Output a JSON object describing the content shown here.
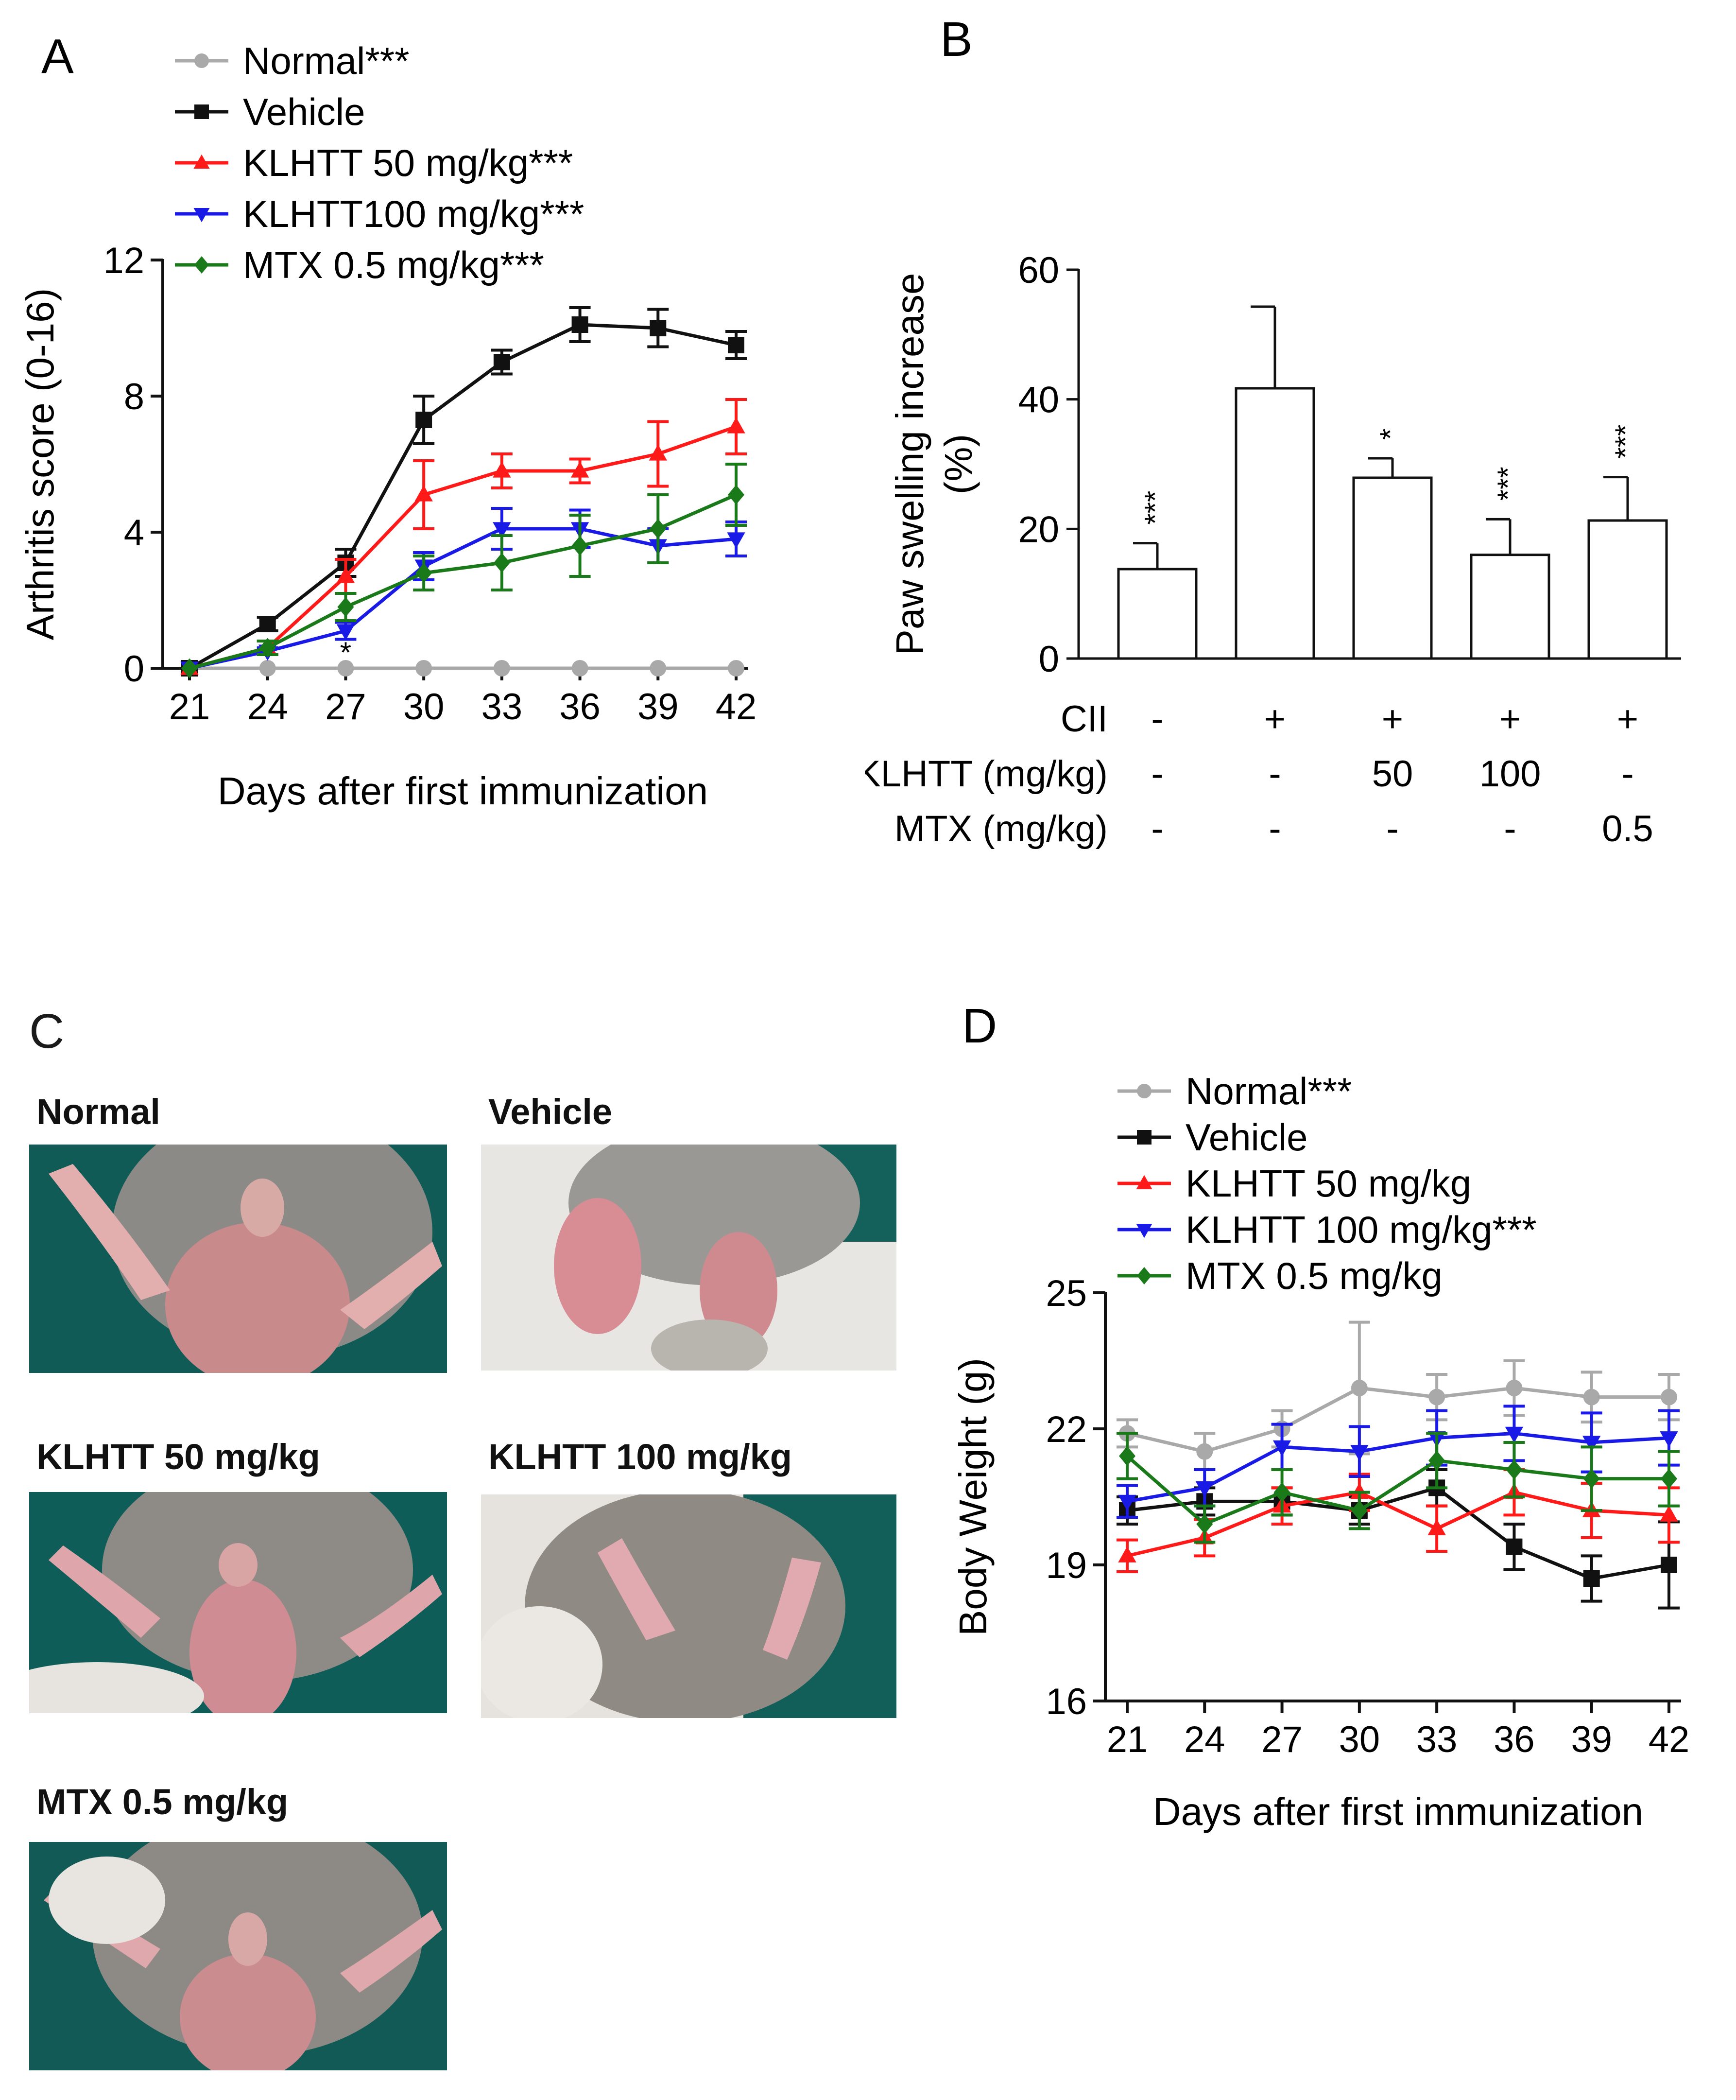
{
  "panel_letters": {
    "a": "A",
    "b": "B",
    "c": "C",
    "d": "D"
  },
  "chart_data": [
    {
      "id": "A",
      "type": "line",
      "ylabel": "Arthritis score (0-16)",
      "xlabel": "Days after first immunization",
      "x": [
        21,
        24,
        27,
        30,
        33,
        36,
        39,
        42
      ],
      "x_ticks": [
        "21",
        "24",
        "27",
        "30",
        "33",
        "36",
        "39",
        "42"
      ],
      "ylim": [
        0,
        12
      ],
      "y_ticks": [
        0,
        4,
        8,
        12
      ],
      "legend": [
        {
          "label": "Normal***",
          "color": "#a9a9a9",
          "marker": "circle"
        },
        {
          "label": "Vehicle",
          "color": "#111111",
          "marker": "square"
        },
        {
          "label": "KLHTT 50 mg/kg***",
          "color": "#ff1a1a",
          "marker": "triangle-up"
        },
        {
          "label": "KLHTT100 mg/kg***",
          "color": "#1a1ae6",
          "marker": "triangle-down"
        },
        {
          "label": "MTX 0.5 mg/kg***",
          "color": "#1a7a1a",
          "marker": "diamond"
        }
      ],
      "series": [
        {
          "name": "Normal",
          "values": [
            0,
            0,
            0,
            0,
            0,
            0,
            0,
            0
          ],
          "errors": [
            0,
            0,
            0,
            0,
            0,
            0,
            0,
            0
          ]
        },
        {
          "name": "Vehicle",
          "values": [
            0,
            1.3,
            3.1,
            7.3,
            9.0,
            10.1,
            10.0,
            9.5
          ],
          "errors": [
            0,
            0.2,
            0.4,
            0.7,
            0.35,
            0.5,
            0.55,
            0.4
          ]
        },
        {
          "name": "KLHTT 50 mg/kg",
          "values": [
            0,
            0.6,
            2.7,
            5.1,
            5.8,
            5.8,
            6.3,
            7.1
          ],
          "errors": [
            0,
            0.2,
            0.5,
            1.0,
            0.5,
            0.35,
            0.95,
            0.8
          ]
        },
        {
          "name": "KLHTT100 mg/kg",
          "values": [
            0,
            0.5,
            1.1,
            3.0,
            4.1,
            4.1,
            3.6,
            3.8
          ],
          "errors": [
            0,
            0.1,
            0.25,
            0.4,
            0.6,
            0.55,
            0.5,
            0.5
          ]
        },
        {
          "name": "MTX 0.5 mg/kg",
          "values": [
            0,
            0.6,
            1.8,
            2.8,
            3.1,
            3.6,
            4.1,
            5.1
          ],
          "errors": [
            0,
            0.2,
            0.4,
            0.5,
            0.8,
            0.9,
            1.0,
            0.9
          ]
        }
      ],
      "annotations": [
        {
          "x": 27,
          "text": "*"
        }
      ]
    },
    {
      "id": "B",
      "type": "bar",
      "ylabel": [
        "Paw swelling increase",
        "(%)"
      ],
      "ylim": [
        0,
        60
      ],
      "y_ticks": [
        0,
        20,
        40,
        60
      ],
      "values": [
        13.8,
        41.7,
        27.9,
        16.0,
        21.3
      ],
      "errors": [
        4.0,
        12.6,
        3.0,
        5.5,
        6.7
      ],
      "significance": [
        "***",
        "",
        "*",
        "***",
        "***"
      ],
      "rows": [
        {
          "label": "CII",
          "cells": [
            "-",
            "+",
            "+",
            "+",
            "+"
          ]
        },
        {
          "label": "KLHTT (mg/kg)",
          "cells": [
            "-",
            "-",
            "50",
            "100",
            "-"
          ]
        },
        {
          "label": "MTX (mg/kg)",
          "cells": [
            "-",
            "-",
            "-",
            "-",
            "0.5"
          ]
        }
      ]
    },
    {
      "id": "D",
      "type": "line",
      "ylabel": "Body Weight (g)",
      "xlabel": "Days after first immunization",
      "x": [
        21,
        24,
        27,
        30,
        33,
        36,
        39,
        42
      ],
      "x_ticks": [
        "21",
        "24",
        "27",
        "30",
        "33",
        "36",
        "39",
        "42"
      ],
      "ylim": [
        16,
        25
      ],
      "y_ticks": [
        16,
        19,
        22,
        25
      ],
      "legend": [
        {
          "label": "Normal***",
          "color": "#a9a9a9",
          "marker": "circle"
        },
        {
          "label": "Vehicle",
          "color": "#111111",
          "marker": "square"
        },
        {
          "label": "KLHTT 50 mg/kg",
          "color": "#ff1a1a",
          "marker": "triangle-up"
        },
        {
          "label": "KLHTT 100 mg/kg***",
          "color": "#1a1ae6",
          "marker": "triangle-down"
        },
        {
          "label": "MTX 0.5 mg/kg",
          "color": "#1a7a1a",
          "marker": "diamond"
        }
      ],
      "series": [
        {
          "name": "Normal",
          "values": [
            21.9,
            21.5,
            22.0,
            22.9,
            22.7,
            22.9,
            22.7,
            22.7
          ],
          "errors": [
            0.3,
            0.4,
            0.4,
            1.45,
            0.5,
            0.6,
            0.55,
            0.5
          ]
        },
        {
          "name": "Vehicle",
          "values": [
            20.2,
            20.4,
            20.4,
            20.2,
            20.7,
            19.4,
            18.7,
            19.0
          ],
          "errors": [
            0.3,
            0.3,
            0.3,
            0.3,
            0.4,
            0.5,
            0.5,
            0.95
          ]
        },
        {
          "name": "KLHTT 50 mg/kg",
          "values": [
            19.2,
            19.6,
            20.3,
            20.6,
            19.8,
            20.6,
            20.2,
            20.1
          ],
          "errors": [
            0.35,
            0.4,
            0.4,
            0.4,
            0.5,
            0.5,
            0.6,
            0.6
          ]
        },
        {
          "name": "KLHTT 100 mg/kg",
          "values": [
            20.4,
            20.7,
            21.6,
            21.5,
            21.8,
            21.9,
            21.7,
            21.8
          ],
          "errors": [
            0.35,
            0.4,
            0.5,
            0.55,
            0.6,
            0.6,
            0.65,
            0.6
          ]
        },
        {
          "name": "MTX 0.5 mg/kg",
          "values": [
            21.4,
            19.9,
            20.6,
            20.2,
            21.3,
            21.1,
            20.9,
            20.9
          ],
          "errors": [
            0.5,
            0.4,
            0.5,
            0.4,
            0.6,
            0.6,
            0.7,
            0.6
          ]
        }
      ]
    }
  ],
  "photos": [
    {
      "label": "Normal",
      "photo_name": "photo-normal"
    },
    {
      "label": "Vehicle",
      "photo_name": "photo-vehicle"
    },
    {
      "label": "KLHTT 50 mg/kg",
      "photo_name": "photo-klhtt-50"
    },
    {
      "label": "KLHTT 100 mg/kg",
      "photo_name": "photo-klhtt-100"
    },
    {
      "label": "MTX 0.5 mg/kg",
      "photo_name": "photo-mtx-05"
    }
  ]
}
